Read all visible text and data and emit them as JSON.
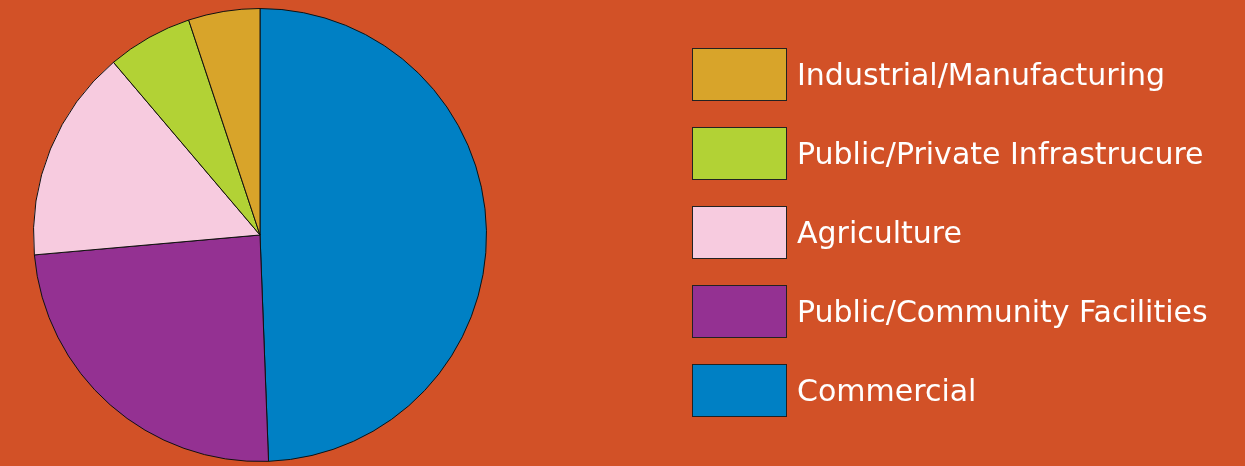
{
  "chart_data": {
    "type": "pie",
    "categories": [
      "Commercial",
      "Public/Community Facilities",
      "Agriculture",
      "Public/Private Infrastrucure",
      "Industrial/Manufacturing"
    ],
    "values": [
      49.4,
      24.2,
      15.2,
      6.1,
      5.1
    ],
    "colors": [
      "#0080c4",
      "#943192",
      "#f7cbdf",
      "#b2d235",
      "#d8a42a"
    ],
    "legend": "right"
  }
}
